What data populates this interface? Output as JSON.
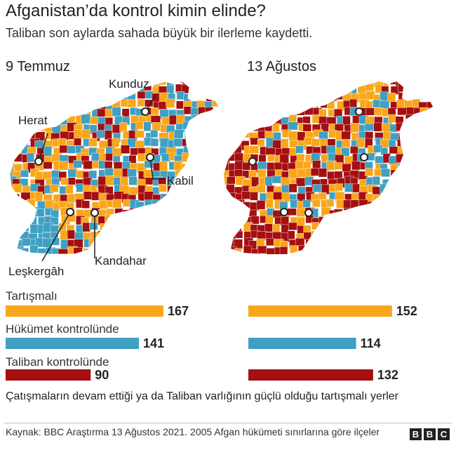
{
  "header": {
    "title": "Afganistan’da kontrol kimin elinde?",
    "subtitle": "Taliban son aylarda sahada büyük bir ilerleme kaydetti."
  },
  "panels": [
    {
      "date": "9 Temmuz"
    },
    {
      "date": "13 Ağustos"
    }
  ],
  "cities": {
    "kunduz": "Kunduz",
    "herat": "Herat",
    "kabil": "Kabil",
    "leskergah": "Leşkergâh",
    "kandahar": "Kandahar"
  },
  "colors": {
    "contested": "#FAA61A",
    "government": "#3EA0C3",
    "taliban": "#A50F0F"
  },
  "chart_data": {
    "type": "bar",
    "categories": [
      "Tartışmalı",
      "Hükümet kontrolünde",
      "Taliban kontrolünde"
    ],
    "series": [
      {
        "name": "9 Temmuz",
        "values": [
          167,
          141,
          90
        ]
      },
      {
        "name": "13 Ağustos",
        "values": [
          152,
          114,
          132
        ]
      }
    ],
    "title": "Afganistan’da kontrol kimin elinde?",
    "xlabel": "",
    "ylabel": ""
  },
  "legend_note": "Çatışmaların devam ettiği ya da Taliban varlığının güçlü olduğu tartışmalı yerler",
  "footer": {
    "source": "Kaynak: BBC Araştırma 13 Ağustos 2021. 2005 Afgan hükümeti sınırlarına göre ilçeler",
    "logo": [
      "B",
      "B",
      "C"
    ]
  }
}
